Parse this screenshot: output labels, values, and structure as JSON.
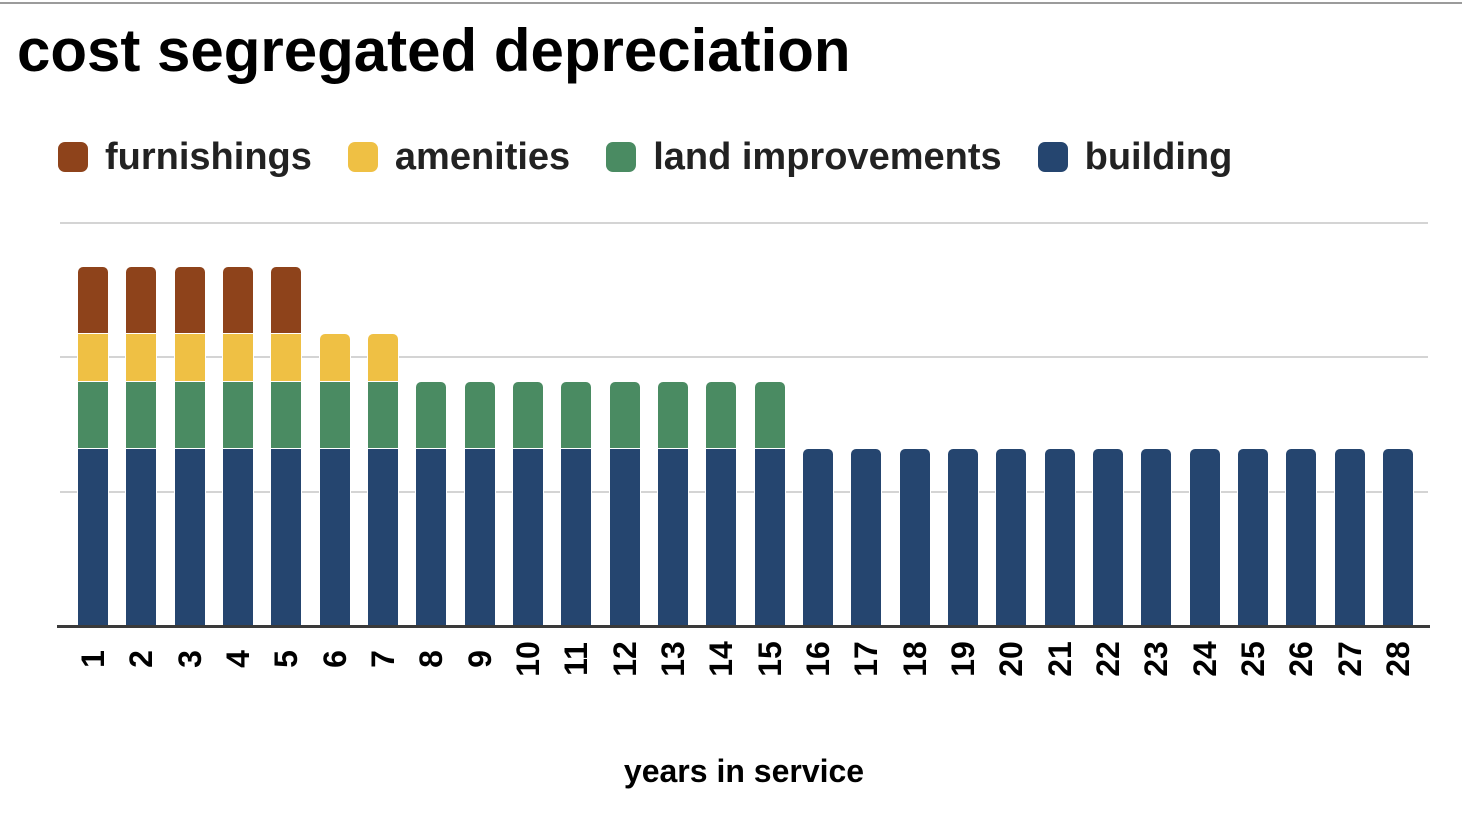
{
  "style": {
    "background": "#FFFFFF",
    "divider_color": "#9B9B9B",
    "gridline_color": "#D4D4D4",
    "axis_line_color": "#3A3A3A",
    "title_color": "#000000",
    "legend_text_color": "#222222"
  },
  "chart_data": {
    "type": "bar",
    "stacked": true,
    "title": "cost segregated depreciation",
    "xlabel": "years in service",
    "ylabel": "",
    "y_axis_labels_visible": false,
    "ylim": [
      0,
      30000
    ],
    "gridline_step": 10000,
    "grid": true,
    "legend_position": "top-left",
    "legend_order": [
      "furnishings",
      "amenities",
      "land improvements",
      "building"
    ],
    "x": [
      1,
      2,
      3,
      4,
      5,
      6,
      7,
      8,
      9,
      10,
      11,
      12,
      13,
      14,
      15,
      16,
      17,
      18,
      19,
      20,
      21,
      22,
      23,
      24,
      25,
      26,
      27,
      28
    ],
    "series": [
      {
        "name": "building",
        "color": "#25456F",
        "values": [
          13182,
          13182,
          13182,
          13182,
          13182,
          13182,
          13182,
          13182,
          13182,
          13182,
          13182,
          13182,
          13182,
          13182,
          13182,
          13182,
          13182,
          13182,
          13182,
          13182,
          13182,
          13182,
          13182,
          13182,
          13182,
          13182,
          13182,
          13182
        ]
      },
      {
        "name": "land improvements",
        "color": "#4A8B62",
        "values": [
          5000,
          5000,
          5000,
          5000,
          5000,
          5000,
          5000,
          5000,
          5000,
          5000,
          5000,
          5000,
          5000,
          5000,
          5000,
          0,
          0,
          0,
          0,
          0,
          0,
          0,
          0,
          0,
          0,
          0,
          0,
          0
        ]
      },
      {
        "name": "amenities",
        "color": "#EFC044",
        "values": [
          3571,
          3571,
          3571,
          3571,
          3571,
          3571,
          3571,
          0,
          0,
          0,
          0,
          0,
          0,
          0,
          0,
          0,
          0,
          0,
          0,
          0,
          0,
          0,
          0,
          0,
          0,
          0,
          0,
          0
        ]
      },
      {
        "name": "furnishings",
        "color": "#8E431B",
        "values": [
          5000,
          5000,
          5000,
          5000,
          5000,
          0,
          0,
          0,
          0,
          0,
          0,
          0,
          0,
          0,
          0,
          0,
          0,
          0,
          0,
          0,
          0,
          0,
          0,
          0,
          0,
          0,
          0,
          0
        ]
      }
    ]
  }
}
